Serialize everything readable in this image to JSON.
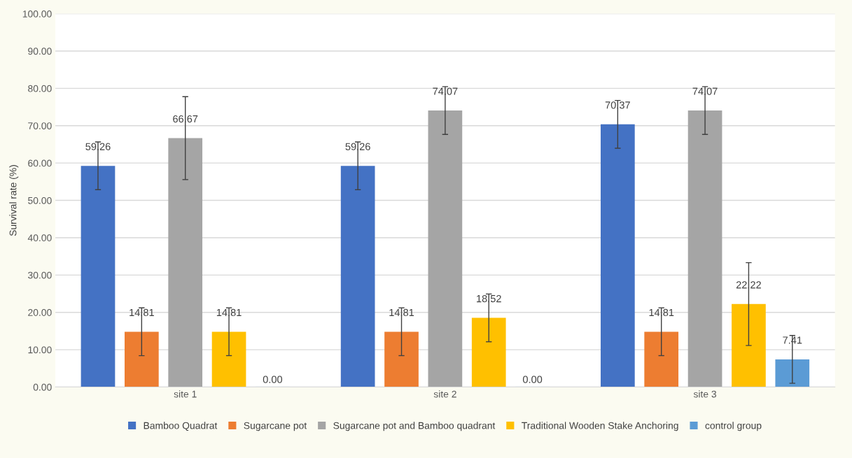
{
  "chart_data": {
    "type": "bar",
    "ylabel": "Survival rate (%)",
    "categories": [
      "site 1",
      "site 2",
      "site 3"
    ],
    "series": [
      {
        "name": "Bamboo Quadrat",
        "color": "#4472c4",
        "values": [
          59.26,
          59.26,
          70.37
        ],
        "errors": [
          6.4,
          6.4,
          6.4
        ]
      },
      {
        "name": "Sugarcane pot",
        "color": "#ed7d31",
        "values": [
          14.81,
          14.81,
          14.81
        ],
        "errors": [
          6.4,
          6.4,
          6.4
        ]
      },
      {
        "name": "Sugarcane pot and Bamboo quadrant",
        "color": "#a5a5a5",
        "values": [
          66.67,
          74.07,
          74.07
        ],
        "errors": [
          11.1,
          6.4,
          6.4
        ]
      },
      {
        "name": "Traditional Wooden Stake Anchoring",
        "color": "#ffc000",
        "values": [
          14.81,
          18.52,
          22.22
        ],
        "errors": [
          6.4,
          6.4,
          11.1
        ]
      },
      {
        "name": "control group",
        "color": "#5b9bd5",
        "values": [
          0.0,
          0.0,
          7.41
        ],
        "errors": [
          null,
          null,
          6.4
        ],
        "value_labels": [
          "0.00",
          "0.00",
          "7.41"
        ]
      }
    ],
    "ylim": [
      0,
      100
    ],
    "yticks": [
      {
        "value": 0,
        "label": "0.00"
      },
      {
        "value": 10,
        "label": "10.00"
      },
      {
        "value": 20,
        "label": "20.00"
      },
      {
        "value": 30,
        "label": "30.00"
      },
      {
        "value": 40,
        "label": "40.00"
      },
      {
        "value": 50,
        "label": "50.00"
      },
      {
        "value": 60,
        "label": "60.00"
      },
      {
        "value": 70,
        "label": "70.00"
      },
      {
        "value": 80,
        "label": "80.00"
      },
      {
        "value": 90,
        "label": "90.00"
      },
      {
        "value": 100,
        "label": "100.00"
      }
    ],
    "grid": "y",
    "legend": "bottom",
    "data_labels": true
  }
}
